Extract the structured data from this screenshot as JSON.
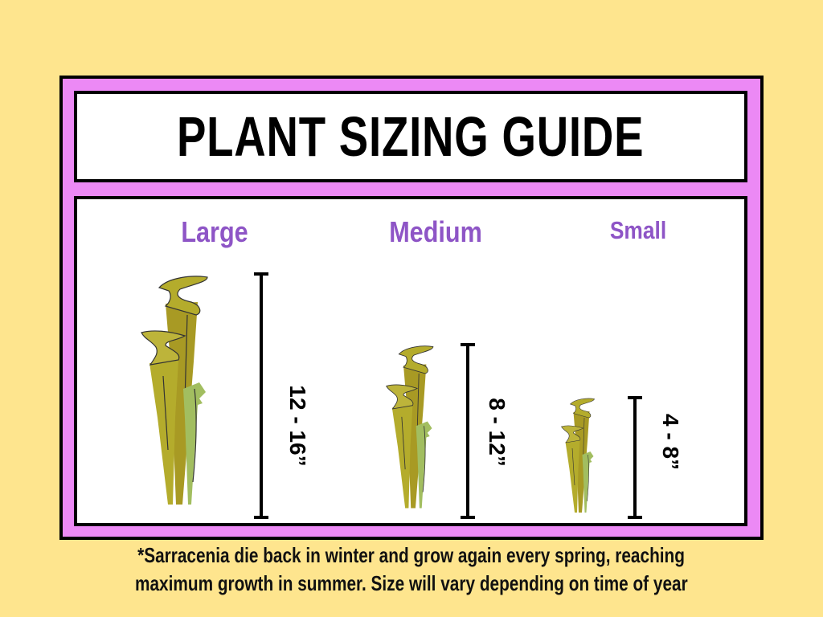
{
  "title": "PLANT SIZING GUIDE",
  "sizes": [
    {
      "label": "Large",
      "range": "12 - 16”"
    },
    {
      "label": "Medium",
      "range": "8 - 12”"
    },
    {
      "label": "Small",
      "range": "4 - 8”"
    }
  ],
  "footnote": {
    "line1": "*Sarracenia die back in winter and grow again every spring, reaching",
    "line2": "maximum growth in summer. Size will vary depending on time of year"
  },
  "colors": {
    "background": "#FEE58E",
    "frame": "#EC89F5",
    "heading": "#8E55C6",
    "pitcher_dark": "#A89A24",
    "pitcher_light": "#B4AC2C",
    "pitcher_green": "#A2BE60"
  }
}
